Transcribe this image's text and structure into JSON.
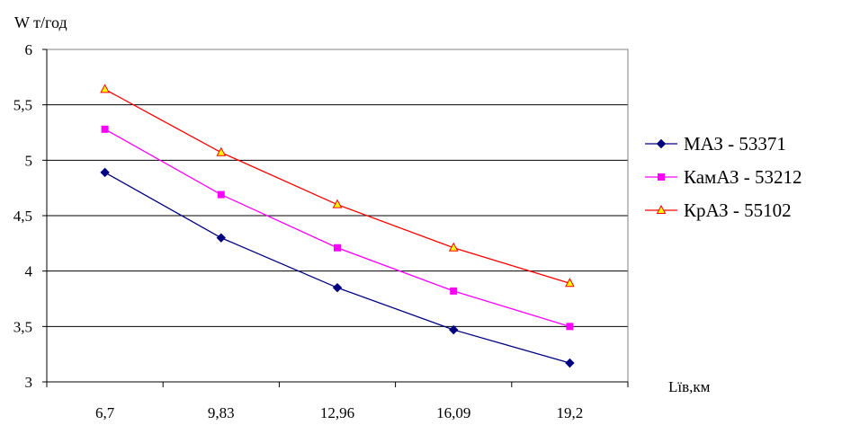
{
  "chart_data": {
    "type": "line",
    "title": "",
    "ylabel": "W т/год",
    "xlabel": "Lïв,км",
    "categories": [
      "6,7",
      "9,83",
      "12,96",
      "16,09",
      "19,2"
    ],
    "yticks": [
      "3",
      "3,5",
      "4",
      "4,5",
      "5",
      "5,5",
      "6"
    ],
    "ylim": [
      3,
      6
    ],
    "grid": "horizontal",
    "legend_position": "right",
    "series": [
      {
        "name": "МАЗ - 53371",
        "values": [
          4.89,
          4.3,
          3.85,
          3.47,
          3.17
        ],
        "color": "#000080",
        "marker": "diamond"
      },
      {
        "name": "КамАЗ - 53212",
        "values": [
          5.28,
          4.69,
          4.21,
          3.82,
          3.5
        ],
        "color": "#ff00ff",
        "marker": "square"
      },
      {
        "name": "КрАЗ - 55102",
        "values": [
          5.64,
          5.07,
          4.6,
          4.21,
          3.89
        ],
        "color": "#ff0000",
        "marker": "triangle",
        "fill": "#ffff00"
      }
    ]
  }
}
